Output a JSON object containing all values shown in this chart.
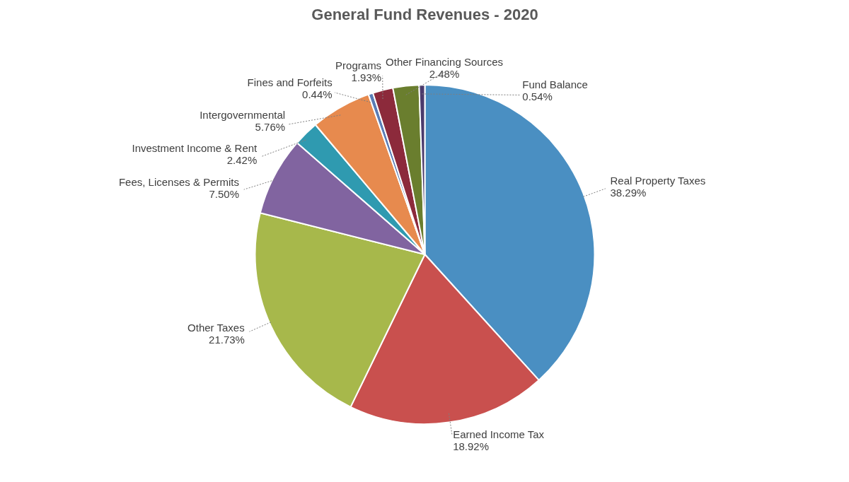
{
  "chart_data": {
    "type": "pie",
    "title": "General Fund Revenues - 2020",
    "categories": [
      "Real Property Taxes",
      "Earned Income Tax",
      "Other Taxes",
      "Fees, Licenses & Permits",
      "Investment Income & Rent",
      "Intergovernmental",
      "Fines and Forfeits",
      "Programs",
      "Other Financing Sources",
      "Fund Balance"
    ],
    "values": [
      38.29,
      18.92,
      21.73,
      7.5,
      2.42,
      5.76,
      0.44,
      1.93,
      2.48,
      0.54
    ],
    "colors": [
      "#4a8fc2",
      "#c9504e",
      "#a7b84b",
      "#8164a0",
      "#2f9ab0",
      "#e78a4e",
      "#5a7cb5",
      "#8c2a3b",
      "#6a7e2e",
      "#4b3a6c"
    ],
    "value_labels": [
      "38.29%",
      "18.92%",
      "21.73%",
      "7.50%",
      "2.42%",
      "5.76%",
      "0.44%",
      "1.93%",
      "2.48%",
      "0.54%"
    ]
  }
}
